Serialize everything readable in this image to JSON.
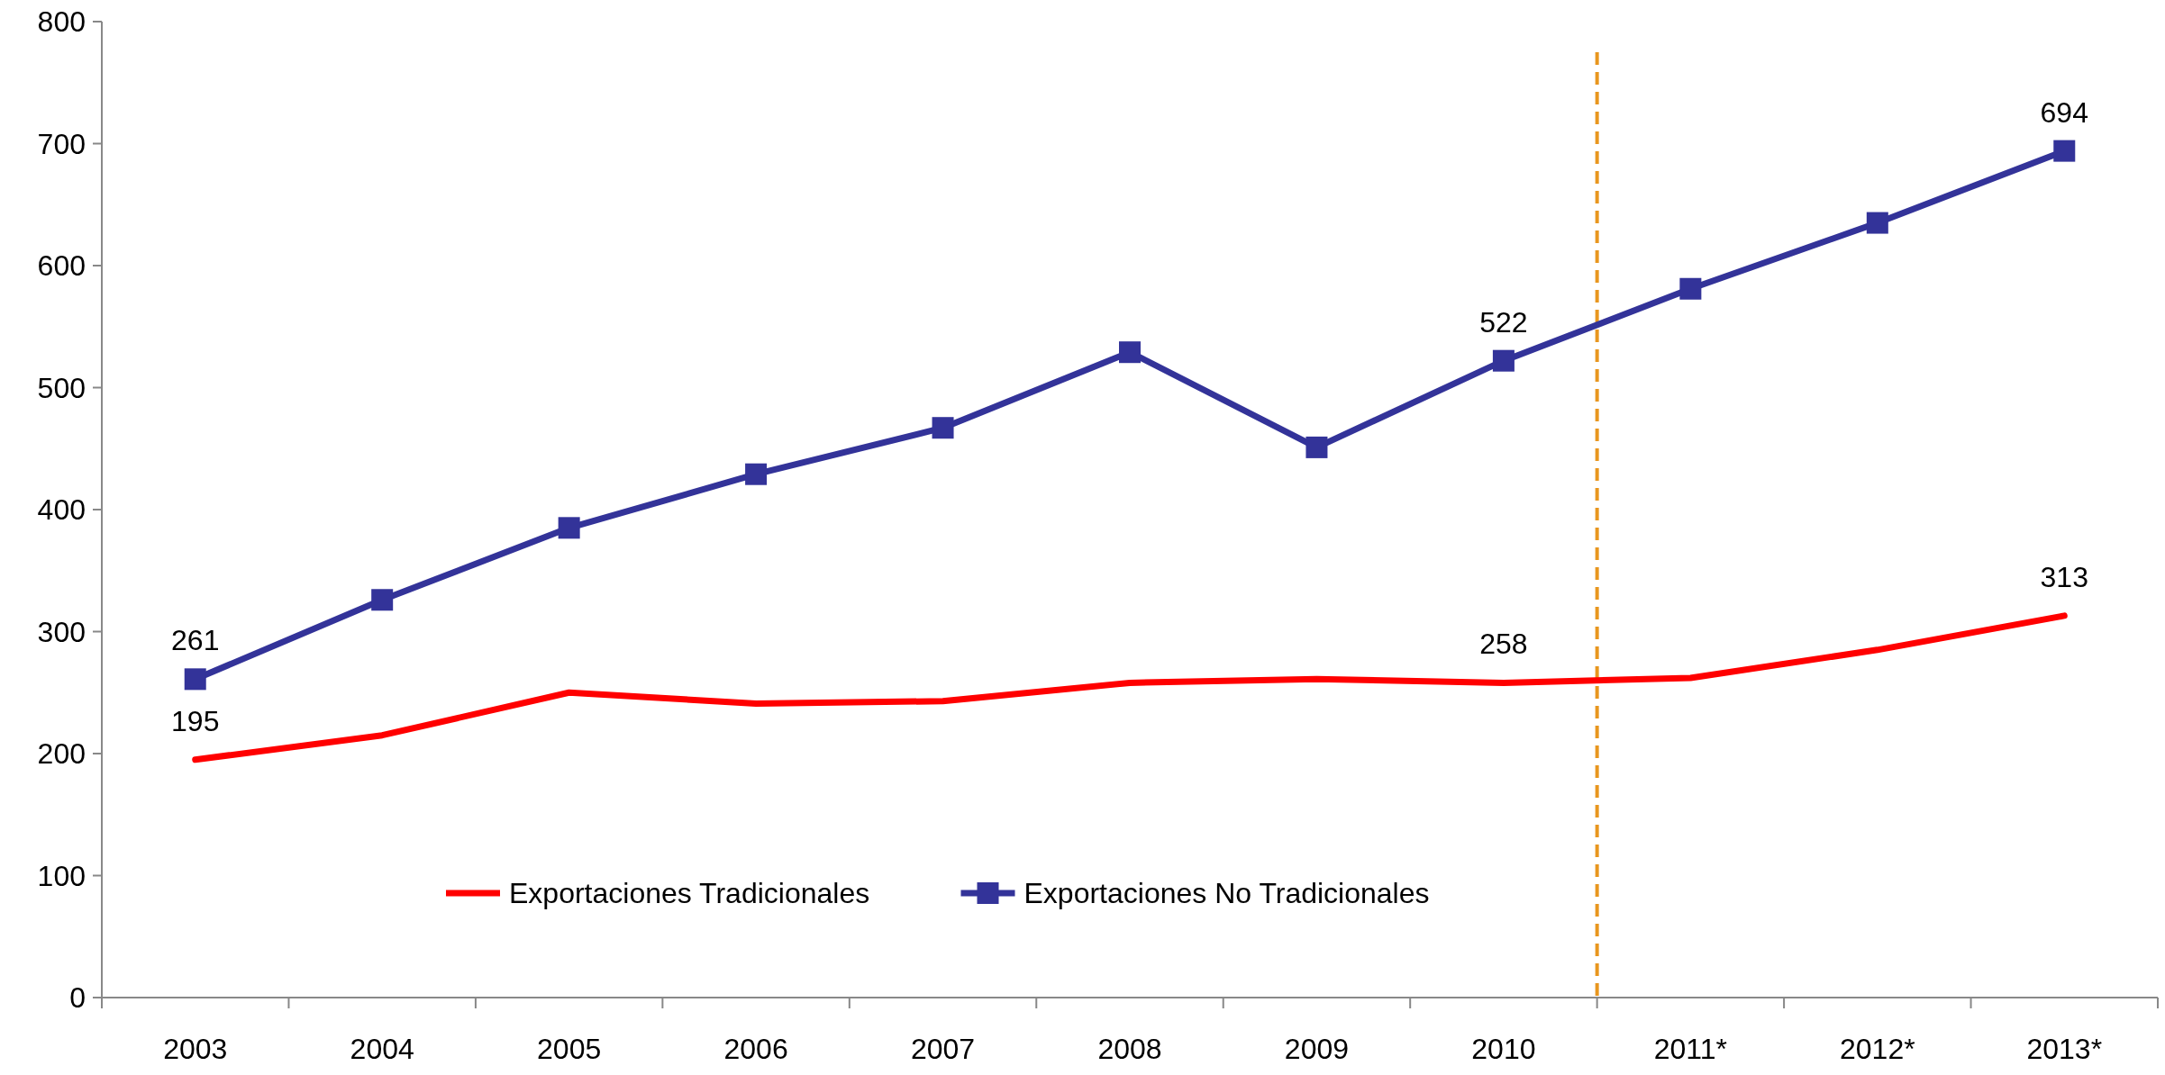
{
  "chart_data": {
    "type": "line",
    "categories": [
      "2003",
      "2004",
      "2005",
      "2006",
      "2007",
      "2008",
      "2009",
      "2010",
      "2011*",
      "2012*",
      "2013*"
    ],
    "series": [
      {
        "name": "Exportaciones Tradicionales",
        "color": "#ff0000",
        "marker": "none",
        "values": [
          195,
          215,
          250,
          241,
          243,
          258,
          261,
          258,
          262,
          285,
          313
        ],
        "value_labels": [
          "195",
          null,
          null,
          null,
          null,
          null,
          null,
          "258",
          null,
          null,
          "313"
        ]
      },
      {
        "name": "Exportaciones No Tradicionales",
        "color": "#333399",
        "marker": "square",
        "values": [
          261,
          326,
          385,
          429,
          467,
          529,
          451,
          522,
          581,
          635,
          694
        ],
        "value_labels": [
          "261",
          null,
          null,
          null,
          null,
          null,
          null,
          "522",
          null,
          null,
          "694"
        ]
      }
    ],
    "ylim": [
      0,
      800
    ],
    "yticks": [
      0,
      100,
      200,
      300,
      400,
      500,
      600,
      700,
      800
    ],
    "ref_lines": [
      {
        "axis": "x",
        "value": "2011*",
        "color": "#e8961e",
        "line_style": "dashed"
      }
    ],
    "legend": "bottom",
    "grid": false,
    "line_style": "solid"
  }
}
